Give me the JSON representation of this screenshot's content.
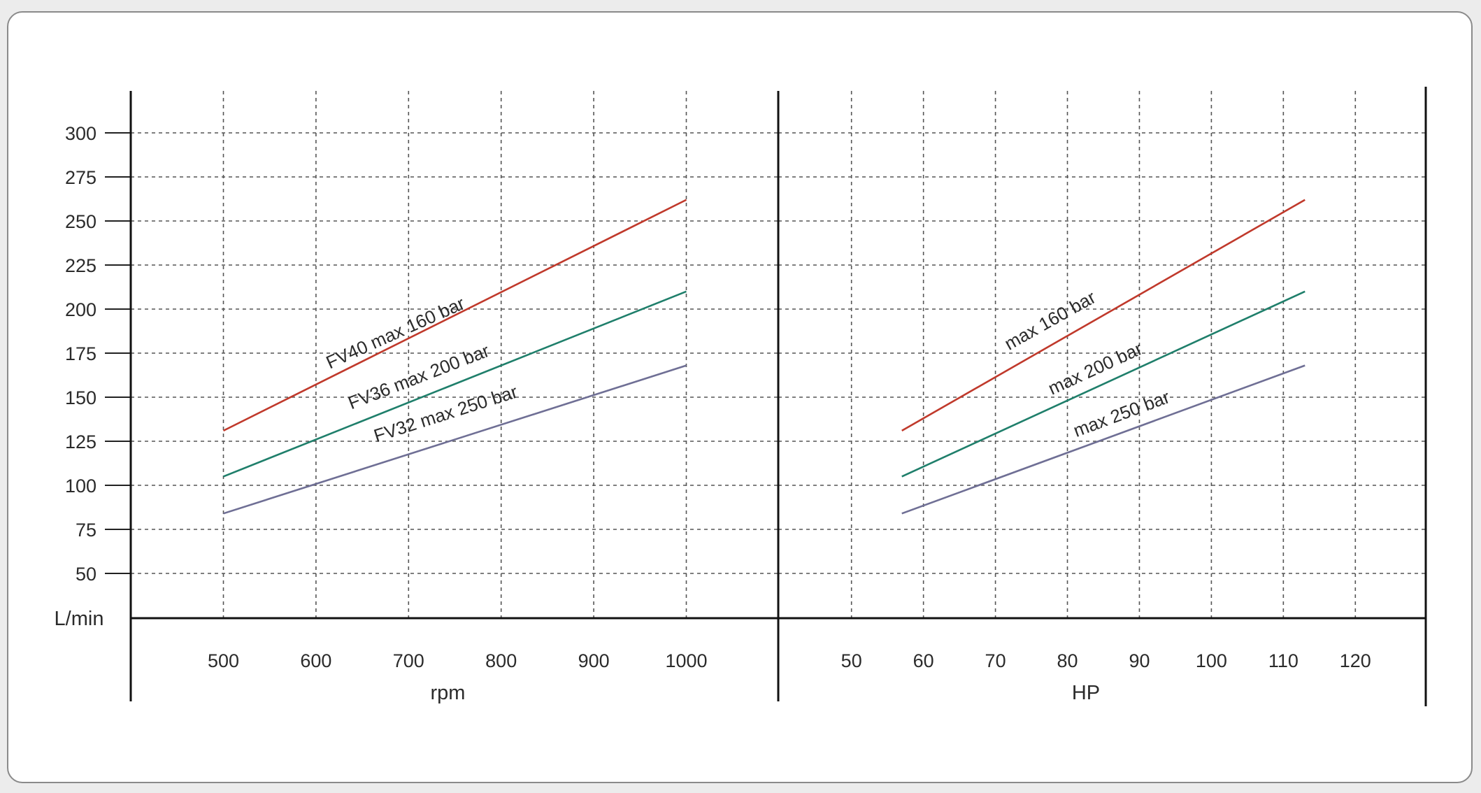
{
  "chart_data": [
    {
      "type": "line",
      "title": "",
      "xlabel": "rpm",
      "ylabel": "L/min",
      "xlim": [
        400,
        1100
      ],
      "ylim": [
        22,
        322
      ],
      "x_ticks": [
        "500",
        "600",
        "700",
        "800",
        "900",
        "1000"
      ],
      "y_ticks": [
        "50",
        "75",
        "100",
        "125",
        "150",
        "175",
        "200",
        "225",
        "250",
        "275",
        "300"
      ],
      "grid": true,
      "series": [
        {
          "name": "FV40 max 160 bar",
          "color": "#c0392b",
          "x": [
            500,
            1000
          ],
          "y": [
            131,
            262
          ]
        },
        {
          "name": "FV36 max 200 bar",
          "color": "#1f7f6b",
          "x": [
            500,
            1000
          ],
          "y": [
            105,
            210
          ]
        },
        {
          "name": "FV32 max 250 bar",
          "color": "#6f6f95",
          "x": [
            500,
            1000
          ],
          "y": [
            84,
            168
          ]
        }
      ]
    },
    {
      "type": "line",
      "title": "",
      "xlabel": "HP",
      "ylabel": "",
      "xlim": [
        40,
        130
      ],
      "ylim": [
        22,
        322
      ],
      "x_ticks": [
        "50",
        "60",
        "70",
        "80",
        "90",
        "100",
        "110",
        "120"
      ],
      "grid": true,
      "series": [
        {
          "name": "max 160 bar",
          "color": "#c0392b",
          "x": [
            57,
            113
          ],
          "y": [
            131,
            262
          ]
        },
        {
          "name": "max 200 bar",
          "color": "#1f7f6b",
          "x": [
            57,
            113
          ],
          "y": [
            105,
            210
          ]
        },
        {
          "name": "max 250 bar",
          "color": "#6f6f95",
          "x": [
            57,
            113
          ],
          "y": [
            84,
            168
          ]
        }
      ]
    }
  ]
}
